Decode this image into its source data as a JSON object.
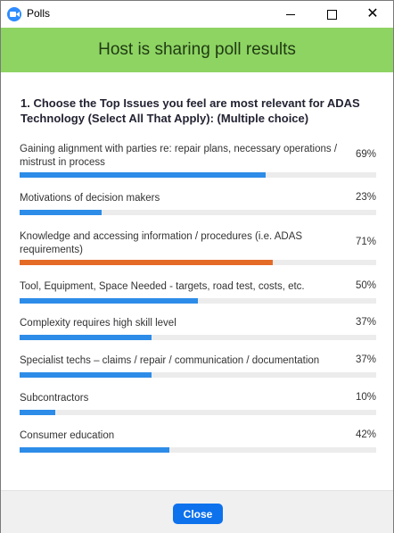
{
  "window": {
    "title": "Polls",
    "app_icon": "zoom-camera-icon",
    "controls": [
      "minimize-icon",
      "maximize-icon",
      "close-icon"
    ]
  },
  "banner": {
    "text": "Host is sharing poll results",
    "color": "#8ed463"
  },
  "question": "1. Choose the Top Issues you feel are most relevant for ADAS Technology (Select All That Apply): (Multiple choice)",
  "options": [
    {
      "label": "Gaining alignment with parties re: repair plans, necessary operations / mistrust in process",
      "percent_text": "69%",
      "percent": 69,
      "highlight": false
    },
    {
      "label": "Motivations of decision makers",
      "percent_text": "23%",
      "percent": 23,
      "highlight": false
    },
    {
      "label": "Knowledge and accessing information / procedures  (i.e. ADAS requirements)",
      "percent_text": "71%",
      "percent": 71,
      "highlight": true
    },
    {
      "label": "Tool, Equipment, Space Needed - targets, road test, costs, etc.",
      "percent_text": "50%",
      "percent": 50,
      "highlight": false
    },
    {
      "label": "Complexity requires high skill level",
      "percent_text": "37%",
      "percent": 37,
      "highlight": false
    },
    {
      "label": "Specialist techs – claims / repair / communication / documentation",
      "percent_text": "37%",
      "percent": 37,
      "highlight": false
    },
    {
      "label": "Subcontractors",
      "percent_text": "10%",
      "percent": 10,
      "highlight": false
    },
    {
      "label": "Consumer education",
      "percent_text": "42%",
      "percent": 42,
      "highlight": false
    }
  ],
  "colors": {
    "bar": "#2d8ce8",
    "bar_top": "#e46b26",
    "track": "#ececec",
    "button": "#0e72ed"
  },
  "footer": {
    "close_label": "Close"
  }
}
